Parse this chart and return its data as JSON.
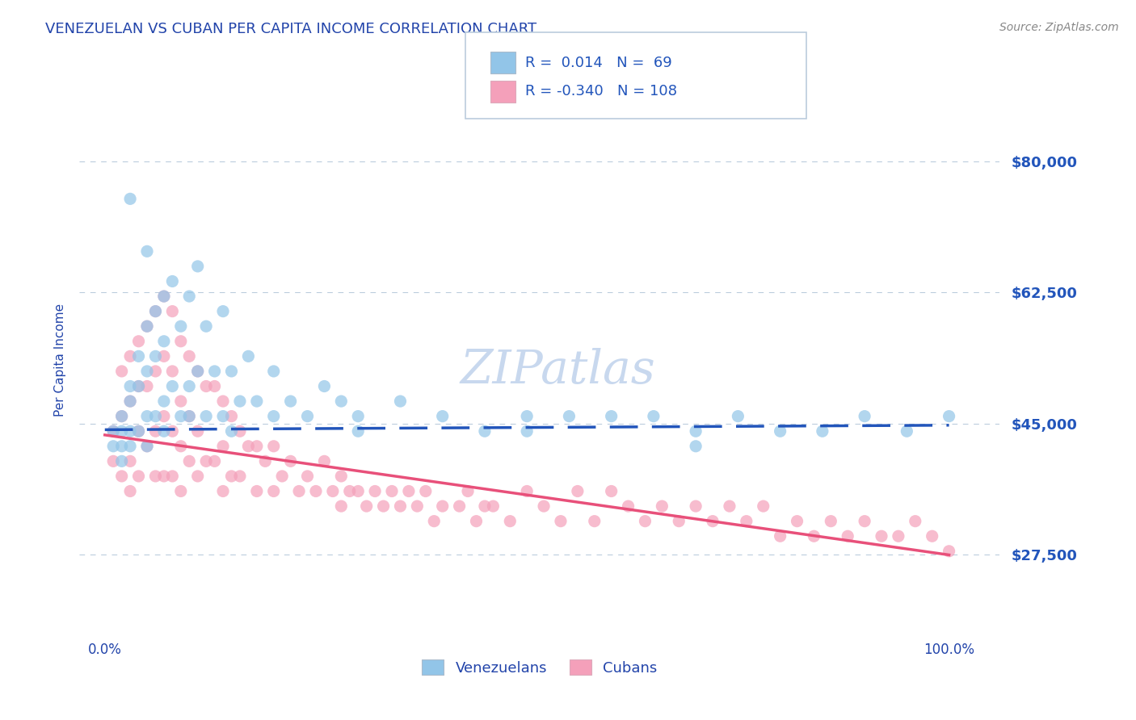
{
  "title": "VENEZUELAN VS CUBAN PER CAPITA INCOME CORRELATION CHART",
  "source": "Source: ZipAtlas.com",
  "ylabel": "Per Capita Income",
  "yticks": [
    27500,
    45000,
    62500,
    80000
  ],
  "ytick_labels": [
    "$27,500",
    "$45,000",
    "$62,500",
    "$80,000"
  ],
  "xlim": [
    -0.03,
    1.06
  ],
  "ylim": [
    17000,
    90000
  ],
  "xticklabels": [
    "0.0%",
    "100.0%"
  ],
  "xticks": [
    0.0,
    1.0
  ],
  "R_venezuelan": 0.014,
  "N_venezuelan": 69,
  "R_cuban": -0.34,
  "N_cuban": 108,
  "color_venezuelan": "#92C5E8",
  "color_cuban": "#F4A0BA",
  "color_trend_venezuelan": "#2255BB",
  "color_trend_cuban": "#E8507A",
  "color_grid": "#BBCCDD",
  "color_title": "#2244AA",
  "color_axis_labels": "#2244AA",
  "color_ytick_labels": "#2255BB",
  "color_source": "#888888",
  "watermark_color": "#C8D8EE",
  "venezuelan_x": [
    0.01,
    0.01,
    0.02,
    0.02,
    0.02,
    0.02,
    0.03,
    0.03,
    0.03,
    0.03,
    0.04,
    0.04,
    0.04,
    0.05,
    0.05,
    0.05,
    0.05,
    0.06,
    0.06,
    0.06,
    0.07,
    0.07,
    0.07,
    0.08,
    0.08,
    0.09,
    0.09,
    0.1,
    0.1,
    0.11,
    0.11,
    0.12,
    0.12,
    0.13,
    0.14,
    0.14,
    0.15,
    0.16,
    0.17,
    0.18,
    0.2,
    0.22,
    0.24,
    0.26,
    0.28,
    0.3,
    0.35,
    0.4,
    0.45,
    0.5,
    0.55,
    0.6,
    0.65,
    0.7,
    0.75,
    0.8,
    0.85,
    0.9,
    0.95,
    1.0,
    0.03,
    0.05,
    0.07,
    0.1,
    0.15,
    0.2,
    0.3,
    0.5,
    0.7
  ],
  "venezuelan_y": [
    44000,
    42000,
    46000,
    44000,
    42000,
    40000,
    50000,
    48000,
    44000,
    42000,
    54000,
    50000,
    44000,
    58000,
    52000,
    46000,
    42000,
    60000,
    54000,
    46000,
    62000,
    56000,
    48000,
    64000,
    50000,
    58000,
    46000,
    62000,
    50000,
    66000,
    52000,
    58000,
    46000,
    52000,
    60000,
    46000,
    52000,
    48000,
    54000,
    48000,
    52000,
    48000,
    46000,
    50000,
    48000,
    46000,
    48000,
    46000,
    44000,
    46000,
    46000,
    46000,
    46000,
    44000,
    46000,
    44000,
    44000,
    46000,
    44000,
    46000,
    75000,
    68000,
    44000,
    46000,
    44000,
    46000,
    44000,
    44000,
    42000
  ],
  "cuban_x": [
    0.01,
    0.01,
    0.02,
    0.02,
    0.02,
    0.03,
    0.03,
    0.03,
    0.03,
    0.04,
    0.04,
    0.04,
    0.04,
    0.05,
    0.05,
    0.05,
    0.06,
    0.06,
    0.06,
    0.06,
    0.07,
    0.07,
    0.07,
    0.07,
    0.08,
    0.08,
    0.08,
    0.08,
    0.09,
    0.09,
    0.09,
    0.09,
    0.1,
    0.1,
    0.1,
    0.11,
    0.11,
    0.11,
    0.12,
    0.12,
    0.13,
    0.13,
    0.14,
    0.14,
    0.14,
    0.15,
    0.15,
    0.16,
    0.16,
    0.17,
    0.18,
    0.18,
    0.19,
    0.2,
    0.2,
    0.21,
    0.22,
    0.23,
    0.24,
    0.25,
    0.26,
    0.27,
    0.28,
    0.28,
    0.29,
    0.3,
    0.31,
    0.32,
    0.33,
    0.34,
    0.35,
    0.36,
    0.37,
    0.38,
    0.39,
    0.4,
    0.42,
    0.43,
    0.44,
    0.45,
    0.46,
    0.48,
    0.5,
    0.52,
    0.54,
    0.56,
    0.58,
    0.6,
    0.62,
    0.64,
    0.66,
    0.68,
    0.7,
    0.72,
    0.74,
    0.76,
    0.78,
    0.8,
    0.82,
    0.84,
    0.86,
    0.88,
    0.9,
    0.92,
    0.94,
    0.96,
    0.98,
    1.0
  ],
  "cuban_y": [
    44000,
    40000,
    52000,
    46000,
    38000,
    54000,
    48000,
    40000,
    36000,
    56000,
    50000,
    44000,
    38000,
    58000,
    50000,
    42000,
    60000,
    52000,
    44000,
    38000,
    62000,
    54000,
    46000,
    38000,
    60000,
    52000,
    44000,
    38000,
    56000,
    48000,
    42000,
    36000,
    54000,
    46000,
    40000,
    52000,
    44000,
    38000,
    50000,
    40000,
    50000,
    40000,
    48000,
    42000,
    36000,
    46000,
    38000,
    44000,
    38000,
    42000,
    42000,
    36000,
    40000,
    42000,
    36000,
    38000,
    40000,
    36000,
    38000,
    36000,
    40000,
    36000,
    38000,
    34000,
    36000,
    36000,
    34000,
    36000,
    34000,
    36000,
    34000,
    36000,
    34000,
    36000,
    32000,
    34000,
    34000,
    36000,
    32000,
    34000,
    34000,
    32000,
    36000,
    34000,
    32000,
    36000,
    32000,
    36000,
    34000,
    32000,
    34000,
    32000,
    34000,
    32000,
    34000,
    32000,
    34000,
    30000,
    32000,
    30000,
    32000,
    30000,
    32000,
    30000,
    30000,
    32000,
    30000,
    28000
  ]
}
